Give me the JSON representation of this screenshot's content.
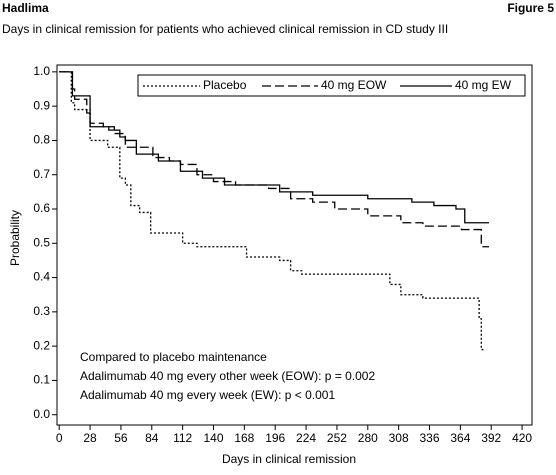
{
  "header": {
    "left": "Hadlima",
    "right": "Figure 5"
  },
  "chart_data": {
    "type": "step",
    "title": "Days in clinical remission for patients who achieved clinical remission in CD study III",
    "x_label": "Days in clinical remission",
    "y_label": "Probability",
    "xlim": [
      -2,
      429
    ],
    "ylim": [
      -0.03,
      1.02
    ],
    "xticks": [
      0,
      28,
      56,
      84,
      112,
      140,
      168,
      196,
      224,
      252,
      280,
      308,
      336,
      364,
      392,
      420
    ],
    "yticks": [
      {
        "value": 0,
        "label": "0.0"
      },
      0.1,
      0.2,
      0.3,
      0.4,
      0.5,
      0.6,
      0.7,
      0.8,
      0.9,
      {
        "value": 1,
        "label": "1.0"
      }
    ],
    "series": [
      {
        "name": "Placebo",
        "color": "#000000",
        "line_style": "dotted",
        "x": [
          0,
          11,
          14,
          28,
          44,
          55,
          60,
          65,
          73,
          83,
          112,
          125,
          170,
          200,
          210,
          220,
          300,
          310,
          330,
          381,
          383,
          385
        ],
        "values": [
          1.0,
          0.91,
          0.89,
          0.8,
          0.78,
          0.69,
          0.67,
          0.61,
          0.59,
          0.53,
          0.5,
          0.49,
          0.46,
          0.45,
          0.42,
          0.41,
          0.38,
          0.35,
          0.34,
          0.28,
          0.19,
          0.19
        ]
      },
      {
        "name": "40 mg EOW",
        "color": "#000000",
        "line_style": "dashed",
        "x": [
          0,
          12,
          14,
          25,
          28,
          40,
          50,
          60,
          85,
          100,
          110,
          125,
          140,
          160,
          190,
          210,
          230,
          250,
          280,
          310,
          330,
          365,
          383,
          390
        ],
        "values": [
          1.0,
          0.95,
          0.92,
          0.88,
          0.85,
          0.84,
          0.82,
          0.78,
          0.75,
          0.74,
          0.73,
          0.7,
          0.68,
          0.67,
          0.66,
          0.63,
          0.62,
          0.6,
          0.58,
          0.56,
          0.55,
          0.54,
          0.49,
          0.49
        ]
      },
      {
        "name": "40 mg EW",
        "color": "#000000",
        "line_style": "solid",
        "x": [
          0,
          12,
          28,
          45,
          55,
          60,
          70,
          90,
          110,
          130,
          150,
          200,
          230,
          280,
          320,
          340,
          360,
          368,
          390
        ],
        "values": [
          1.0,
          0.93,
          0.84,
          0.83,
          0.81,
          0.8,
          0.76,
          0.74,
          0.71,
          0.69,
          0.67,
          0.65,
          0.64,
          0.63,
          0.62,
          0.61,
          0.6,
          0.56,
          0.56
        ]
      }
    ],
    "annotations": [
      "Compared to placebo maintenance",
      "Adalimumab 40 mg every other week (EOW): p = 0.002",
      "Adalimumab 40 mg every week (EW): p < 0.001"
    ],
    "legend": "top-right"
  }
}
